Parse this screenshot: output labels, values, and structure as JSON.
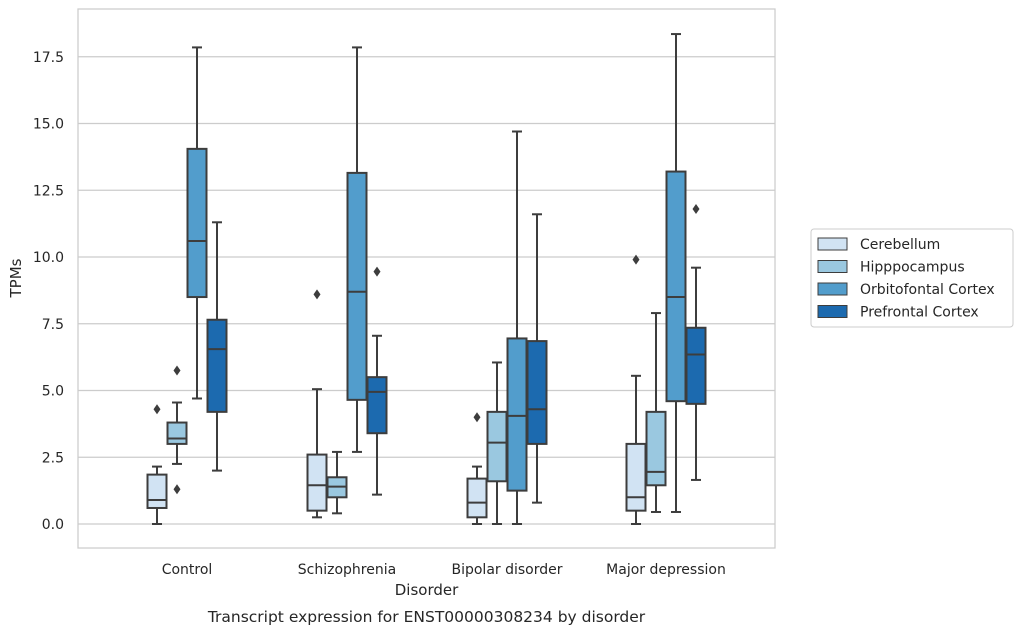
{
  "chart_data": {
    "type": "box",
    "caption": "Transcript expression for ENST00000308234 by disorder",
    "xlabel": "Disorder",
    "ylabel": "TPMs",
    "ylim": [
      -0.9,
      19.3
    ],
    "yticks": [
      0.0,
      2.5,
      5.0,
      7.5,
      10.0,
      12.5,
      15.0,
      17.5
    ],
    "ytick_labels": [
      "0.0",
      "2.5",
      "5.0",
      "7.5",
      "10.0",
      "12.5",
      "15.0",
      "17.5"
    ],
    "grid": "horizontal",
    "legend_position": "right",
    "categories": [
      "Control",
      "Schizophrenia",
      "Bipolar disorder",
      "Major depression"
    ],
    "series": [
      {
        "name": "Cerebellum",
        "color": "#d1e3f3",
        "boxes": [
          {
            "whislo": 0.0,
            "q1": 0.6,
            "med": 0.9,
            "q3": 1.85,
            "whishi": 2.15,
            "fliers": [
              4.3
            ]
          },
          {
            "whislo": 0.25,
            "q1": 0.5,
            "med": 1.45,
            "q3": 2.6,
            "whishi": 5.05,
            "fliers": [
              8.6
            ]
          },
          {
            "whislo": 0.0,
            "q1": 0.25,
            "med": 0.8,
            "q3": 1.7,
            "whishi": 2.15,
            "fliers": [
              4.0
            ]
          },
          {
            "whislo": 0.0,
            "q1": 0.5,
            "med": 1.0,
            "q3": 3.0,
            "whishi": 5.55,
            "fliers": [
              9.9
            ]
          }
        ]
      },
      {
        "name": "Hipppocampus",
        "color": "#9ac8e0",
        "boxes": [
          {
            "whislo": 2.25,
            "q1": 3.0,
            "med": 3.2,
            "q3": 3.8,
            "whishi": 4.55,
            "fliers": [
              5.75,
              1.3
            ]
          },
          {
            "whislo": 0.4,
            "q1": 1.0,
            "med": 1.4,
            "q3": 1.75,
            "whishi": 2.7,
            "fliers": []
          },
          {
            "whislo": 0.0,
            "q1": 1.6,
            "med": 3.05,
            "q3": 4.2,
            "whishi": 6.05,
            "fliers": []
          },
          {
            "whislo": 0.45,
            "q1": 1.45,
            "med": 1.95,
            "q3": 4.2,
            "whishi": 7.9,
            "fliers": []
          }
        ]
      },
      {
        "name": "Orbitofontal Cortex",
        "color": "#529dcc",
        "boxes": [
          {
            "whislo": 4.7,
            "q1": 8.5,
            "med": 10.6,
            "q3": 14.05,
            "whishi": 17.85,
            "fliers": []
          },
          {
            "whislo": 2.7,
            "q1": 4.65,
            "med": 8.7,
            "q3": 13.15,
            "whishi": 17.85,
            "fliers": []
          },
          {
            "whislo": 0.0,
            "q1": 1.25,
            "med": 4.05,
            "q3": 6.95,
            "whishi": 14.7,
            "fliers": []
          },
          {
            "whislo": 0.45,
            "q1": 4.6,
            "med": 8.5,
            "q3": 13.2,
            "whishi": 18.35,
            "fliers": []
          }
        ]
      },
      {
        "name": "Prefrontal Cortex",
        "color": "#1c6aaf",
        "boxes": [
          {
            "whislo": 2.0,
            "q1": 4.2,
            "med": 6.55,
            "q3": 7.65,
            "whishi": 11.3,
            "fliers": []
          },
          {
            "whislo": 1.1,
            "q1": 3.4,
            "med": 4.95,
            "q3": 5.5,
            "whishi": 7.05,
            "fliers": [
              9.45
            ]
          },
          {
            "whislo": 0.8,
            "q1": 3.0,
            "med": 4.3,
            "q3": 6.85,
            "whishi": 11.6,
            "fliers": []
          },
          {
            "whislo": 1.65,
            "q1": 4.5,
            "med": 6.35,
            "q3": 7.35,
            "whishi": 9.6,
            "fliers": [
              11.8
            ]
          }
        ]
      }
    ]
  }
}
